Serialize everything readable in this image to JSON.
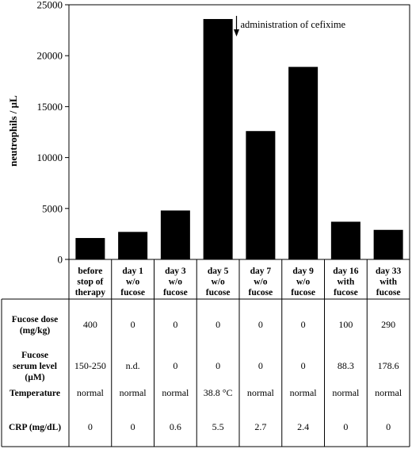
{
  "chart_data": {
    "type": "bar",
    "ylabel": "neutrophils / µL",
    "ylim": [
      0,
      25000
    ],
    "yticks": [
      0,
      5000,
      10000,
      15000,
      20000,
      25000
    ],
    "categories": [
      [
        "before",
        "stop of",
        "therapy"
      ],
      [
        "day 1",
        "w/o",
        "fucose"
      ],
      [
        "day 3",
        "w/o",
        "fucose"
      ],
      [
        "day 5",
        "w/o",
        "fucose"
      ],
      [
        "day 7",
        "w/o",
        "fucose"
      ],
      [
        "day 9",
        "w/o",
        "fucose"
      ],
      [
        "day 16",
        "with",
        "fucose"
      ],
      [
        "day 33",
        "with",
        "fucose"
      ]
    ],
    "values": [
      2100,
      2700,
      4800,
      23600,
      12600,
      18900,
      3700,
      2900
    ],
    "bar_color": "#000000",
    "grid": false,
    "annotation": {
      "text": "administration of cefixime",
      "category_index": 3
    }
  },
  "table": {
    "rows": [
      {
        "header": [
          "Fucose dose",
          "(mg/kg)"
        ],
        "cells": [
          "400",
          "0",
          "0",
          "0",
          "0",
          "0",
          "100",
          "290"
        ]
      },
      {
        "header": [
          "Fucose",
          "serum level",
          "(µM)"
        ],
        "cells": [
          "150-250",
          "n.d.",
          "0",
          "0",
          "0",
          "0",
          "88.3",
          "178.6"
        ]
      },
      {
        "header": [
          "Temperature"
        ],
        "cells": [
          "normal",
          "normal",
          "normal",
          "38.8 °C",
          "normal",
          "normal",
          "normal",
          "normal"
        ]
      },
      {
        "header": [
          "CRP (mg/dL)"
        ],
        "cells": [
          "0",
          "0",
          "0.6",
          "5.5",
          "2.7",
          "2.4",
          "0",
          "0"
        ]
      }
    ]
  }
}
